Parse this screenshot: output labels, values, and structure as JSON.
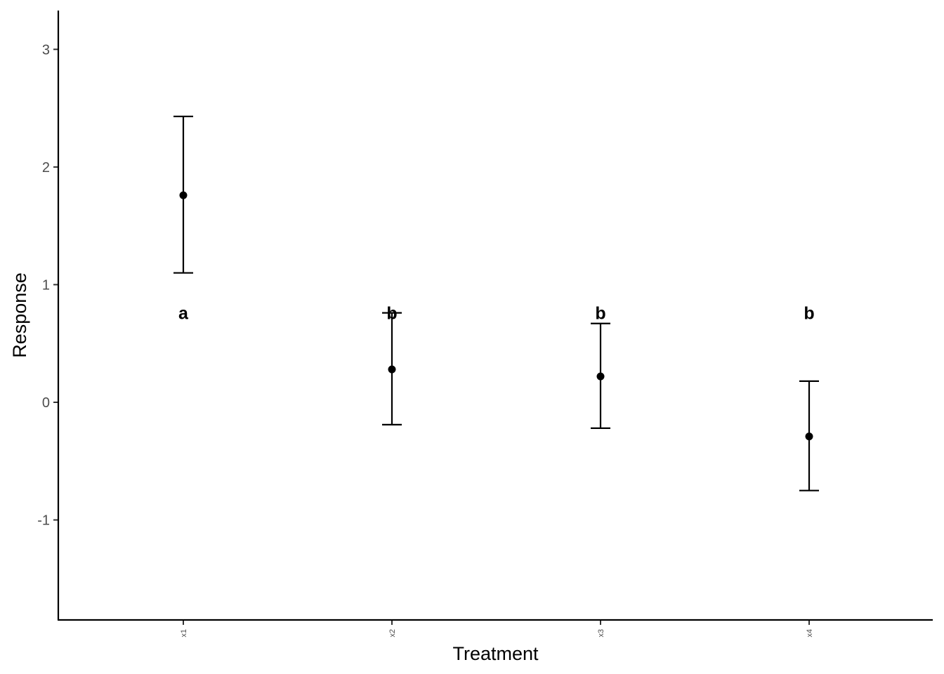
{
  "chart_data": {
    "type": "scatter",
    "xlabel": "Treatment",
    "ylabel": "Response",
    "categories": [
      "x1",
      "x2",
      "x3",
      "x4"
    ],
    "mean": [
      1.76,
      0.28,
      0.22,
      -0.29
    ],
    "lower": [
      1.1,
      -0.19,
      -0.22,
      -0.75
    ],
    "upper": [
      2.43,
      0.76,
      0.67,
      0.18
    ],
    "labels": [
      "a",
      "b",
      "b",
      "b"
    ],
    "label_y": 0.76,
    "y_ticks": [
      -1,
      0,
      1,
      2,
      3
    ],
    "ylim": [
      -1.85,
      3.33
    ],
    "grid": false,
    "legend": "none",
    "colors": {
      "points": "#000000",
      "axis": "#000000"
    }
  }
}
